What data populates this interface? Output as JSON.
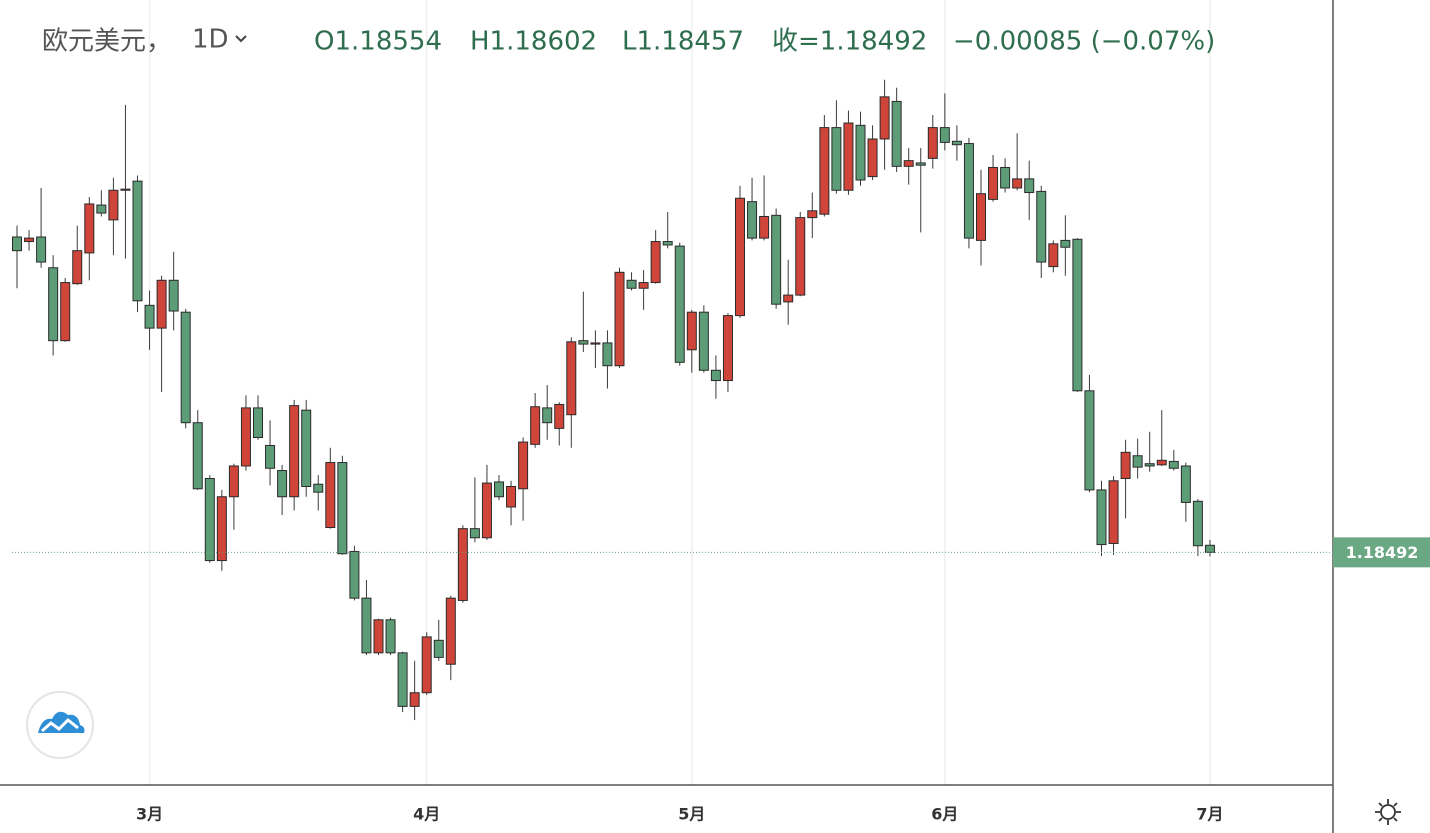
{
  "chart_data": {
    "type": "candlestick",
    "header": {
      "symbol": "欧元美元，",
      "interval": "1D",
      "open": "O1.18554",
      "high": "H1.18602",
      "low": "L1.18457",
      "close": "收=1.18492",
      "change": "−0.00085 (−0.07%)"
    },
    "categories": [
      null,
      null,
      null,
      null,
      null,
      null,
      null,
      null,
      null,
      null,
      null,
      "3月",
      null,
      null,
      null,
      null,
      null,
      null,
      null,
      null,
      null,
      null,
      null,
      null,
      null,
      null,
      null,
      null,
      null,
      null,
      null,
      null,
      null,
      null,
      "4月",
      null,
      null,
      null,
      null,
      null,
      null,
      null,
      null,
      null,
      null,
      null,
      null,
      null,
      null,
      null,
      null,
      null,
      null,
      null,
      null,
      null,
      "5月",
      null,
      null,
      null,
      null,
      null,
      null,
      null,
      null,
      null,
      null,
      null,
      null,
      null,
      null,
      null,
      null,
      null,
      null,
      null,
      null,
      "6月",
      null,
      null,
      null,
      null,
      null,
      null,
      null,
      null,
      null,
      null,
      null,
      null,
      null,
      null,
      null,
      null,
      null,
      null,
      null,
      null,
      null,
      "7月"
    ],
    "open": [
      1.2126,
      1.2122,
      1.2126,
      1.2099,
      1.2035,
      1.2085,
      1.2112,
      1.2154,
      1.2141,
      1.2167,
      1.2175,
      1.2066,
      1.2046,
      1.2088,
      1.206,
      1.1963,
      1.1914,
      1.1842,
      1.1898,
      1.1925,
      1.1976,
      1.1943,
      1.1921,
      1.1898,
      1.1974,
      1.1909,
      1.1871,
      1.1928,
      1.185,
      1.1809,
      1.1761,
      1.179,
      1.1761,
      1.1714,
      1.1726,
      1.1772,
      1.1751,
      1.1807,
      1.187,
      1.1862,
      1.1911,
      1.1889,
      1.1905,
      1.1944,
      1.1976,
      1.1958,
      1.197,
      1.2035,
      1.2032,
      1.2033,
      1.2013,
      1.2088,
      1.2081,
      1.2086,
      1.2122,
      1.2118,
      1.2027,
      1.206,
      1.2009,
      1.2,
      1.2057,
      1.2157,
      1.2125,
      1.2145,
      1.2069,
      1.2075,
      1.2143,
      1.2146,
      1.2222,
      1.2167,
      1.2224,
      1.2179,
      1.2212,
      1.2245,
      1.2188,
      1.2191,
      1.2195,
      1.2222,
      1.221,
      1.2208,
      1.2123,
      1.2159,
      1.2187,
      1.2169,
      1.2177,
      1.2166,
      1.21,
      1.2123,
      1.2124,
      1.1991,
      1.1904,
      1.1857,
      1.1914,
      1.1934,
      1.1927,
      1.1926,
      1.1929,
      1.1925,
      1.1894,
      1.18554
    ],
    "high": [
      1.2136,
      1.2132,
      1.2169,
      1.211,
      1.209,
      1.2136,
      1.2161,
      1.2167,
      1.2178,
      1.2242,
      1.218,
      1.2079,
      1.2092,
      1.2113,
      1.2063,
      1.1974,
      1.1917,
      1.1904,
      1.1927,
      1.1987,
      1.1987,
      1.1965,
      1.1926,
      1.1983,
      1.1983,
      1.1917,
      1.1941,
      1.1934,
      1.1855,
      1.1825,
      1.1791,
      1.1792,
      1.1762,
      1.1754,
      1.1779,
      1.179,
      1.1811,
      1.1873,
      1.1915,
      1.1926,
      1.1917,
      1.1912,
      1.195,
      1.1989,
      1.1996,
      1.1981,
      1.2038,
      1.2078,
      1.2044,
      1.2044,
      1.2099,
      1.2095,
      1.2097,
      1.2132,
      1.2148,
      1.2121,
      1.2062,
      1.2066,
      1.2022,
      1.2059,
      1.2171,
      1.2178,
      1.218,
      1.2151,
      1.2106,
      1.2148,
      1.2165,
      1.2233,
      1.2246,
      1.2237,
      1.2236,
      1.2224,
      1.2264,
      1.2257,
      1.2204,
      1.2204,
      1.2233,
      1.2252,
      1.2224,
      1.2213,
      1.2185,
      1.2198,
      1.2195,
      1.2217,
      1.2193,
      1.2171,
      1.2123,
      1.2145,
      1.2125,
      1.2005,
      1.1912,
      1.1916,
      1.1948,
      1.1949,
      1.1955,
      1.1974,
      1.1939,
      1.1928,
      1.1896,
      1.18602
    ],
    "low": [
      1.2081,
      1.2114,
      1.2099,
      1.2022,
      1.2034,
      1.2084,
      1.2088,
      1.2144,
      1.211,
      1.2107,
      1.206,
      1.2027,
      1.199,
      1.2044,
      1.1958,
      1.1904,
      1.184,
      1.1833,
      1.1869,
      1.1921,
      1.1948,
      1.1908,
      1.1882,
      1.1886,
      1.1898,
      1.1886,
      1.187,
      1.1847,
      1.1807,
      1.1759,
      1.1759,
      1.1759,
      1.1709,
      1.1702,
      1.1724,
      1.1754,
      1.1737,
      1.1805,
      1.1858,
      1.186,
      1.1895,
      1.1873,
      1.1877,
      1.1941,
      1.1948,
      1.1943,
      1.1941,
      1.2025,
      1.2011,
      1.1993,
      1.2011,
      1.2079,
      1.2062,
      1.2085,
      1.2116,
      1.2013,
      1.2007,
      1.2007,
      1.1984,
      1.199,
      1.2055,
      1.2123,
      1.2123,
      1.2063,
      1.2049,
      1.2074,
      1.2125,
      1.2144,
      1.2164,
      1.2163,
      1.2171,
      1.2176,
      1.2185,
      1.2183,
      1.2172,
      1.213,
      1.2186,
      1.2202,
      1.2193,
      1.2116,
      1.2101,
      1.2157,
      1.2165,
      1.2167,
      1.2141,
      1.209,
      1.2095,
      1.2092,
      1.199,
      1.1902,
      1.1846,
      1.1847,
      1.1879,
      1.1914,
      1.192,
      1.1925,
      1.1921,
      1.1876,
      1.1846,
      1.18457
    ],
    "close": [
      1.2114,
      1.2125,
      1.2104,
      1.2035,
      1.2086,
      1.2114,
      1.2155,
      1.2147,
      1.2167,
      1.2168,
      1.207,
      1.2046,
      1.2088,
      1.2061,
      1.1963,
      1.1905,
      1.1842,
      1.1898,
      1.1925,
      1.1976,
      1.195,
      1.1923,
      1.1898,
      1.1978,
      1.1907,
      1.1902,
      1.1928,
      1.1848,
      1.1809,
      1.1761,
      1.179,
      1.1761,
      1.1714,
      1.1726,
      1.1775,
      1.1757,
      1.1809,
      1.187,
      1.1862,
      1.191,
      1.1898,
      1.1907,
      1.1946,
      1.1977,
      1.1963,
      1.1979,
      1.2034,
      1.2032,
      1.2033,
      1.2013,
      1.2095,
      1.2081,
      1.2086,
      1.2122,
      1.2119,
      1.2016,
      1.206,
      1.2009,
      1.2,
      1.2057,
      1.216,
      1.2125,
      1.2144,
      1.2067,
      1.2075,
      1.2143,
      1.2149,
      1.2222,
      1.2167,
      1.2226,
      1.2176,
      1.2212,
      1.2249,
      1.2188,
      1.2193,
      1.2189,
      1.2222,
      1.2209,
      1.2207,
      1.2125,
      1.2164,
      1.2187,
      1.2169,
      1.2177,
      1.2165,
      1.2104,
      1.212,
      1.2117,
      1.1991,
      1.1904,
      1.1856,
      1.1912,
      1.1937,
      1.1924,
      1.1925,
      1.193,
      1.1923,
      1.1893,
      1.1855,
      1.18492
    ],
    "last_price": 1.18492,
    "ylim": [
      1.1645,
      1.2334
    ],
    "grid": true,
    "up_color": "#d0453a",
    "down_color": "#5c9d78",
    "wick_color": "#3a3a3a",
    "last_price_color": "#6aa783"
  }
}
